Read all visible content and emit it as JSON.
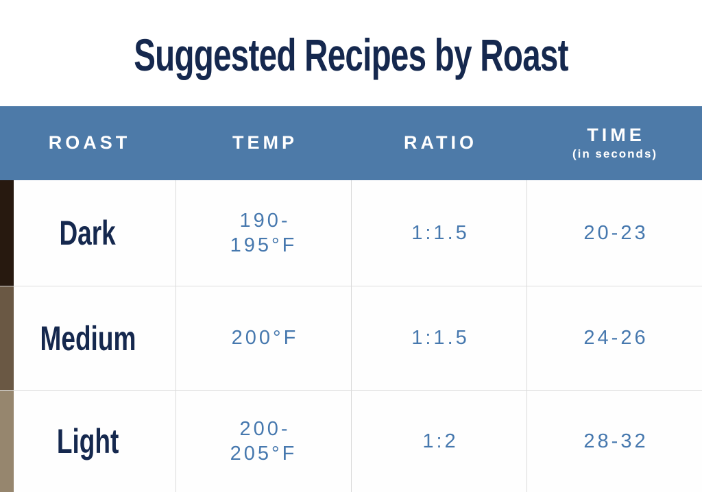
{
  "page": {
    "title": "Suggested Recipes by Roast"
  },
  "colors": {
    "header_background": "#4d7aa8",
    "header_text": "#ffffff",
    "title_navy": "#15284e",
    "value_blue": "#4678ae",
    "divider_gray": "#dcdcdc"
  },
  "table": {
    "headers": {
      "roast": "ROAST",
      "temp": "TEMP",
      "ratio": "RATIO",
      "time": "TIME",
      "time_sub": "(in seconds)"
    },
    "rows": [
      {
        "roast": "Dark",
        "temp": "190-195°F",
        "ratio": "1:1.5",
        "time": "20-23",
        "swatch": "#27190f"
      },
      {
        "roast": "Medium",
        "temp": "200°F",
        "ratio": "1:1.5",
        "time": "24-26",
        "swatch": "#6a5844"
      },
      {
        "roast": "Light",
        "temp": "200-205°F",
        "ratio": "1:2",
        "time": "28-32",
        "swatch": "#96866e"
      }
    ]
  },
  "chart_data": {
    "type": "table",
    "title": "Suggested Recipes by Roast",
    "columns": [
      "ROAST",
      "TEMP",
      "RATIO",
      "TIME (in seconds)"
    ],
    "rows": [
      [
        "Dark",
        "190-195°F",
        "1:1.5",
        "20-23"
      ],
      [
        "Medium",
        "200°F",
        "1:1.5",
        "24-26"
      ],
      [
        "Light",
        "200-205°F",
        "1:2",
        "28-32"
      ]
    ]
  }
}
